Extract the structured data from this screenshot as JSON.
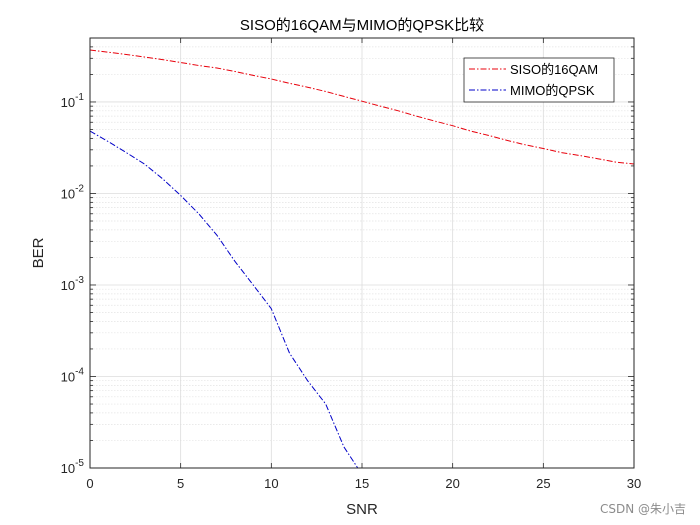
{
  "chart_data": {
    "type": "line",
    "title": "SISO的16QAM与MIMO的QPSK比较",
    "xlabel": "SNR",
    "ylabel": "BER",
    "xlim": [
      0,
      30
    ],
    "ylim": [
      1e-05,
      0.5
    ],
    "yscale": "log",
    "grid": true,
    "minor_grid": true,
    "legend_position": "top-right",
    "x_ticks": [
      "0",
      "5",
      "10",
      "15",
      "20",
      "25",
      "30"
    ],
    "y_ticks": [
      {
        "value": 1e-05,
        "exp": "-5"
      },
      {
        "value": 0.0001,
        "exp": "-4"
      },
      {
        "value": 0.001,
        "exp": "-3"
      },
      {
        "value": 0.01,
        "exp": "-2"
      },
      {
        "value": 0.1,
        "exp": "-1"
      }
    ],
    "series": [
      {
        "name": "SISO的16QAM",
        "color": "#e8000b",
        "linestyle": "dash-dot",
        "x": [
          0,
          1,
          2,
          3,
          4,
          5,
          6,
          7,
          8,
          9,
          10,
          11,
          12,
          13,
          14,
          15,
          16,
          17,
          18,
          19,
          20,
          21,
          22,
          23,
          24,
          25,
          26,
          27,
          28,
          29,
          30
        ],
        "y": [
          0.37,
          0.35,
          0.33,
          0.31,
          0.29,
          0.27,
          0.25,
          0.235,
          0.215,
          0.195,
          0.178,
          0.16,
          0.145,
          0.13,
          0.115,
          0.102,
          0.09,
          0.08,
          0.07,
          0.062,
          0.055,
          0.048,
          0.043,
          0.038,
          0.034,
          0.031,
          0.028,
          0.026,
          0.024,
          0.022,
          0.021
        ]
      },
      {
        "name": "MIMO的QPSK",
        "color": "#0000c8",
        "linestyle": "dash-dot",
        "x": [
          0,
          1,
          2,
          3,
          4,
          5,
          6,
          7,
          8,
          9,
          10,
          11,
          12,
          13,
          14,
          15
        ],
        "y": [
          0.048,
          0.037,
          0.028,
          0.021,
          0.0145,
          0.0095,
          0.006,
          0.0035,
          0.0018,
          0.001,
          0.00055,
          0.00018,
          9e-05,
          5e-05,
          1.7e-05,
          8.5e-06
        ]
      }
    ]
  },
  "watermark": "CSDN @朱小吉"
}
